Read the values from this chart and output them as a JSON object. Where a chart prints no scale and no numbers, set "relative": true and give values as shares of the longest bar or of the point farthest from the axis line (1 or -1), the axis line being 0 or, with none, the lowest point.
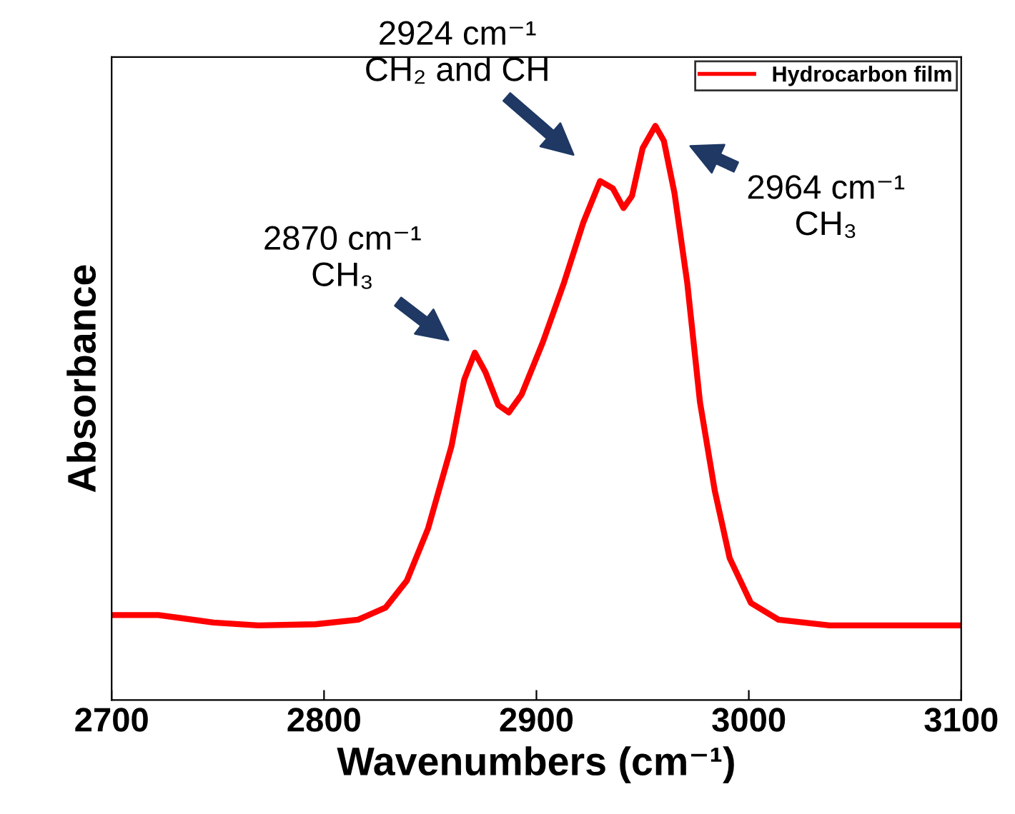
{
  "chart_data": {
    "type": "line",
    "xlabel": "Wavenumbers (cm⁻¹)",
    "ylabel": "Absorbance",
    "relative": true,
    "x": [
      2700,
      2722,
      2748,
      2769,
      2796,
      2816,
      2829,
      2839,
      2849,
      2860,
      2866,
      2871,
      2876,
      2882,
      2887,
      2893,
      2903,
      2913,
      2922,
      2930,
      2936,
      2941,
      2945,
      2950,
      2956,
      2960,
      2965,
      2971,
      2977,
      2984,
      2991,
      3001,
      3014,
      3038,
      3065,
      3100
    ],
    "series": [
      {
        "name": "Hydrocarbon film",
        "color": "#ff0000",
        "values": [
          0.148,
          0.148,
          0.135,
          0.13,
          0.132,
          0.14,
          0.161,
          0.208,
          0.299,
          0.442,
          0.558,
          0.605,
          0.571,
          0.514,
          0.501,
          0.532,
          0.623,
          0.727,
          0.831,
          0.904,
          0.891,
          0.857,
          0.878,
          0.961,
          1.0,
          0.974,
          0.883,
          0.727,
          0.519,
          0.364,
          0.247,
          0.169,
          0.14,
          0.13,
          0.13,
          0.13
        ]
      }
    ],
    "xlim": [
      2700,
      3100
    ],
    "xticks": [
      2700,
      2800,
      2900,
      3000,
      3100
    ],
    "annotations": [
      "2870 cm⁻¹\nCH₃",
      "2924 cm⁻¹\nCH₂ and CH",
      "2964 cm⁻¹\nCH₃"
    ],
    "legend": "top right",
    "grid": false,
    "marker": "none",
    "line_style": "solid"
  }
}
